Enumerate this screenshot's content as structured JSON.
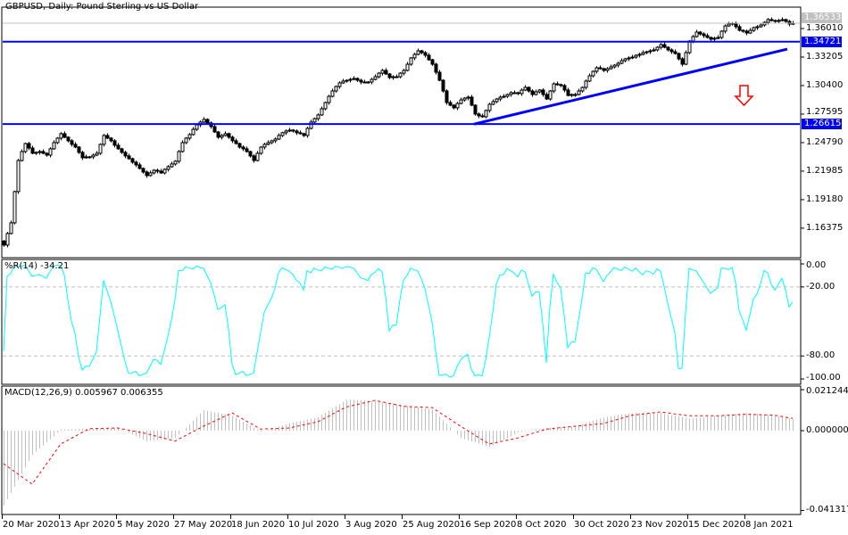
{
  "header": {
    "title": "GBPUSD, Daily:  Pound Sterling vs US Dollar"
  },
  "wr_panel": {
    "label": "%R(14) -34.21"
  },
  "macd_panel": {
    "label": "MACD(12,26,9) 0.005967 0.006355"
  },
  "price_tags": {
    "current": {
      "value": "1.36533",
      "color": "#c0c0c0"
    },
    "resistance": {
      "value": "1.34721",
      "color": "#0000ff"
    },
    "support": {
      "value": "1.26615",
      "color": "#0000ff"
    }
  },
  "colors": {
    "trendlines": "#0000ff",
    "wr_line": "#00ffff",
    "macd_hist": "#c0c0c0",
    "macd_signal": "#ff0000",
    "arrow": "#ff0000"
  },
  "annotation": {
    "icon": "arrow-down-outline-icon"
  },
  "chart_data": [
    {
      "type": "candlestick",
      "title": "GBPUSD, Daily:  Pound Sterling vs US Dollar",
      "x_tick_labels": [
        "20 Mar 2020",
        "13 Apr 2020",
        "5 May 2020",
        "27 May 2020",
        "18 Jun 2020",
        "10 Jul 2020",
        "3 Aug 2020",
        "25 Aug 2020",
        "16 Sep 2020",
        "8 Oct 2020",
        "30 Oct 2020",
        "23 Nov 2020",
        "15 Dec 2020",
        "8 Jan 2021"
      ],
      "y_tick_labels": [
        "1.36010",
        "1.33205",
        "1.30400",
        "1.27595",
        "1.24790",
        "1.21985",
        "1.19180",
        "1.16375"
      ],
      "ylim": [
        1.14,
        1.372
      ],
      "close": [
        1.1471,
        1.1585,
        1.169,
        1.1997,
        1.2303,
        1.2391,
        1.247,
        1.2426,
        1.2374,
        1.2383,
        1.2391,
        1.2374,
        1.2356,
        1.2418,
        1.2479,
        1.2523,
        1.2567,
        1.2532,
        1.2497,
        1.2462,
        1.2435,
        1.2383,
        1.233,
        1.2339,
        1.2339,
        1.2356,
        1.2374,
        1.2462,
        1.2549,
        1.2523,
        1.2497,
        1.2453,
        1.2418,
        1.2383,
        1.2348,
        1.2321,
        1.2286,
        1.226,
        1.2225,
        1.219,
        1.2155,
        1.2181,
        1.2207,
        1.2198,
        1.2181,
        1.2216,
        1.2242,
        1.2269,
        1.2296,
        1.2391,
        1.2479,
        1.2523,
        1.2558,
        1.261,
        1.2654,
        1.2681,
        1.2707,
        1.2672,
        1.2637,
        1.2584,
        1.2532,
        1.2549,
        1.2567,
        1.2532,
        1.2497,
        1.247,
        1.2435,
        1.2418,
        1.2391,
        1.2348,
        1.2303,
        1.2374,
        1.2435,
        1.2462,
        1.2479,
        1.2497,
        1.2514,
        1.2549,
        1.2576,
        1.2593,
        1.2602,
        1.2593,
        1.2576,
        1.2567,
        1.2549,
        1.2619,
        1.2681,
        1.2715,
        1.2751,
        1.2812,
        1.2873,
        1.2934,
        1.2987,
        1.3031,
        1.3066,
        1.3084,
        1.3092,
        1.3101,
        1.311,
        1.3092,
        1.3075,
        1.3075,
        1.3075,
        1.3101,
        1.3127,
        1.3162,
        1.3189,
        1.3154,
        1.3119,
        1.3127,
        1.3127,
        1.3162,
        1.3189,
        1.325,
        1.3312,
        1.3347,
        1.3382,
        1.3364,
        1.3338,
        1.3294,
        1.325,
        1.3171,
        1.3092,
        1.2987,
        1.2873,
        1.2847,
        1.2821,
        1.2864,
        1.2899,
        1.2917,
        1.2926,
        1.2847,
        1.276,
        1.2742,
        1.2733,
        1.2795,
        1.2856,
        1.2882,
        1.2908,
        1.2926,
        1.2934,
        1.2952,
        1.297,
        1.297,
        1.2961,
        1.2996,
        1.3022,
        1.2987,
        1.2952,
        1.2978,
        1.2996,
        1.2952,
        1.2908,
        1.2987,
        1.3057,
        1.3049,
        1.304,
        1.2996,
        1.2943,
        1.2952,
        1.2952,
        1.2987,
        1.3022,
        1.3084,
        1.3136,
        1.318,
        1.3215,
        1.3206,
        1.3189,
        1.3206,
        1.3224,
        1.3241,
        1.3259,
        1.3285,
        1.3303,
        1.3312,
        1.332,
        1.3338,
        1.3347,
        1.3364,
        1.3373,
        1.3382,
        1.3391,
        1.3417,
        1.3443,
        1.3417,
        1.3391,
        1.3373,
        1.3355,
        1.3303,
        1.325,
        1.3364,
        1.3478,
        1.3522,
        1.3566,
        1.3548,
        1.3531,
        1.3513,
        1.3496,
        1.3505,
        1.3513,
        1.3575,
        1.3627,
        1.3645,
        1.3654,
        1.3619,
        1.3583,
        1.3575,
        1.3557,
        1.3583,
        1.361,
        1.3619,
        1.3636,
        1.3662,
        1.3689,
        1.368,
        1.3671,
        1.368,
        1.3689,
        1.3671,
        1.3645,
        1.3653
      ],
      "horizontal_lines": [
        1.34721,
        1.26615
      ],
      "current_price": 1.36533,
      "trendline": {
        "from_price": 1.2661,
        "to_price": 1.3399
      }
    },
    {
      "type": "line",
      "name": "%R(14)",
      "y_tick_labels": [
        "0.00",
        "-20.00",
        "-80.00",
        "-100.00"
      ],
      "levels": [
        -20,
        -80
      ],
      "ylim": [
        -100,
        0
      ],
      "last_value": -34.21
    },
    {
      "type": "bar",
      "name": "MACD(12,26,9)",
      "y_tick_labels": [
        "0.021244",
        "0.000000",
        "-0.041317"
      ],
      "ylim": [
        -0.041317,
        0.021244
      ],
      "main": [
        -0.0388,
        -0.0125,
        0.0005,
        0.001,
        0.0015,
        -0.0054,
        -0.0038,
        0.0107,
        0.0077,
        -0.0005,
        0.0038,
        0.0069,
        0.0162,
        0.0154,
        0.0131,
        0.011,
        -0.0038,
        -0.0085,
        -0.0008,
        0.0015,
        0.0023,
        0.0069,
        0.0092,
        0.0092,
        0.0062,
        0.0077,
        0.0092,
        0.0077,
        0.005967
      ],
      "signal": [
        -0.0171,
        -0.0277,
        -0.0069,
        0.001,
        0.0014,
        -0.0015,
        -0.0054,
        0.0023,
        0.0092,
        0.0008,
        0.0014,
        0.0046,
        0.0123,
        0.0157,
        0.0126,
        0.012,
        0.0023,
        -0.0069,
        -0.0038,
        0.0008,
        0.0023,
        0.0037,
        0.008,
        0.0097,
        0.0077,
        0.0077,
        0.0085,
        0.008,
        0.006355
      ]
    }
  ]
}
